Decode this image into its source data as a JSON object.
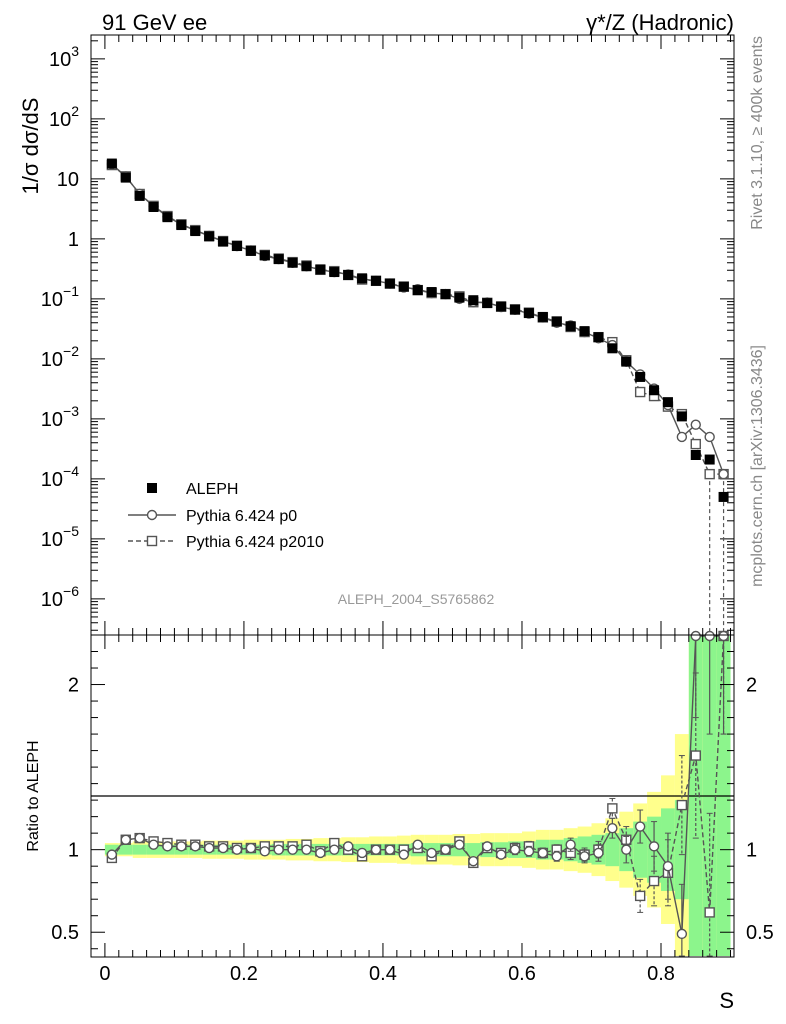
{
  "header": {
    "left": "91 GeV ee",
    "right": "γ*/Z (Hadronic)"
  },
  "side_labels": {
    "rivet": "Rivet 3.1.10, ≥ 400k events",
    "mcplots": "mcplots.cern.ch [arXiv:1306.3436]"
  },
  "analysis_id": "ALEPH_2004_S5765862",
  "colors": {
    "data": "#000000",
    "mc": "#555555",
    "band_inner": "#8cf58c",
    "band_outer": "#ffff8c"
  },
  "chart_data": [
    {
      "type": "scatter",
      "ylabel": "1/σ  dσ/dS",
      "yscale": "log",
      "ylim": [
        2.5e-07,
        2500
      ],
      "xlim": [
        -0.02,
        0.905
      ],
      "yticks": [
        {
          "value": 1e-06,
          "base": "10",
          "exp": "−6"
        },
        {
          "value": 1e-05,
          "base": "10",
          "exp": "−5"
        },
        {
          "value": 0.0001,
          "base": "10",
          "exp": "−4"
        },
        {
          "value": 0.001,
          "base": "10",
          "exp": "−3"
        },
        {
          "value": 0.01,
          "base": "10",
          "exp": "−2"
        },
        {
          "value": 0.1,
          "base": "10",
          "exp": "−1"
        },
        {
          "value": 1,
          "base": "1",
          "exp": ""
        },
        {
          "value": 10,
          "base": "10",
          "exp": ""
        },
        {
          "value": 100,
          "base": "10",
          "exp": "2"
        },
        {
          "value": 1000,
          "base": "10",
          "exp": "3"
        }
      ],
      "legend": {
        "position": "bottom-left",
        "entries": [
          "ALEPH",
          "Pythia 6.424 p0",
          "Pythia 6.424 p2010"
        ]
      },
      "x": [
        0.01,
        0.03,
        0.05,
        0.07,
        0.09,
        0.11,
        0.13,
        0.15,
        0.17,
        0.19,
        0.21,
        0.23,
        0.25,
        0.27,
        0.29,
        0.31,
        0.33,
        0.35,
        0.37,
        0.39,
        0.41,
        0.43,
        0.45,
        0.47,
        0.49,
        0.51,
        0.53,
        0.55,
        0.57,
        0.59,
        0.61,
        0.63,
        0.65,
        0.67,
        0.69,
        0.71,
        0.73,
        0.75,
        0.77,
        0.79,
        0.81,
        0.83,
        0.85,
        0.87,
        0.89
      ],
      "series": [
        {
          "name": "ALEPH",
          "values": [
            18,
            10.5,
            5.2,
            3.4,
            2.3,
            1.7,
            1.35,
            1.1,
            0.9,
            0.76,
            0.63,
            0.53,
            0.46,
            0.4,
            0.35,
            0.31,
            0.28,
            0.25,
            0.22,
            0.2,
            0.18,
            0.16,
            0.14,
            0.13,
            0.12,
            0.105,
            0.095,
            0.085,
            0.075,
            0.066,
            0.058,
            0.05,
            0.042,
            0.035,
            0.029,
            0.023,
            0.015,
            0.009,
            0.005,
            0.003,
            0.0019,
            0.0011,
            0.00025,
            0.00021,
            5e-05
          ]
        },
        {
          "name": "Pythia 6.424 p0",
          "values": [
            17.5,
            11,
            5.6,
            3.5,
            2.35,
            1.73,
            1.38,
            1.12,
            0.91,
            0.76,
            0.64,
            0.52,
            0.46,
            0.4,
            0.35,
            0.305,
            0.28,
            0.255,
            0.215,
            0.2,
            0.18,
            0.155,
            0.145,
            0.125,
            0.12,
            0.1,
            0.088,
            0.087,
            0.073,
            0.066,
            0.057,
            0.049,
            0.04,
            0.036,
            0.028,
            0.022,
            0.017,
            0.009,
            0.0055,
            0.0032,
            0.0017,
            0.0005,
            0.0008,
            0.0005,
            0.00012
          ]
        },
        {
          "name": "Pythia 6.424 p2010",
          "values": [
            17,
            11,
            5.6,
            3.55,
            2.4,
            1.75,
            1.4,
            1.12,
            0.92,
            0.77,
            0.64,
            0.54,
            0.47,
            0.41,
            0.36,
            0.305,
            0.29,
            0.25,
            0.21,
            0.2,
            0.18,
            0.16,
            0.14,
            0.125,
            0.12,
            0.11,
            0.088,
            0.086,
            0.074,
            0.067,
            0.059,
            0.049,
            0.042,
            0.034,
            0.028,
            0.023,
            0.019,
            0.0095,
            0.0028,
            0.0024,
            0.0016,
            0.0012,
            0.00038,
            0.00012,
            0.00012
          ]
        }
      ]
    },
    {
      "type": "line",
      "ylabel": "Ratio to ALEPH",
      "xlabel": "S",
      "ylim": [
        0.35,
        2.3
      ],
      "xlim": [
        -0.02,
        0.905
      ],
      "xticks": [
        {
          "value": 0,
          "label": "0"
        },
        {
          "value": 0.2,
          "label": "0.2"
        },
        {
          "value": 0.4,
          "label": "0.4"
        },
        {
          "value": 0.6,
          "label": "0.6"
        },
        {
          "value": 0.8,
          "label": "0.8"
        }
      ],
      "yticks": [
        {
          "value": 0.5,
          "label": "0.5"
        },
        {
          "value": 1,
          "label": "1"
        },
        {
          "value": 2,
          "label": "2"
        }
      ],
      "x": [
        0.01,
        0.03,
        0.05,
        0.07,
        0.09,
        0.11,
        0.13,
        0.15,
        0.17,
        0.19,
        0.21,
        0.23,
        0.25,
        0.27,
        0.29,
        0.31,
        0.33,
        0.35,
        0.37,
        0.39,
        0.41,
        0.43,
        0.45,
        0.47,
        0.49,
        0.51,
        0.53,
        0.55,
        0.57,
        0.59,
        0.61,
        0.63,
        0.65,
        0.67,
        0.69,
        0.71,
        0.73,
        0.75,
        0.77,
        0.79,
        0.81,
        0.83,
        0.85,
        0.87,
        0.89
      ],
      "band_inner": [
        0.03,
        0.03,
        0.03,
        0.03,
        0.03,
        0.03,
        0.03,
        0.03,
        0.03,
        0.03,
        0.03,
        0.03,
        0.035,
        0.035,
        0.035,
        0.035,
        0.035,
        0.035,
        0.035,
        0.035,
        0.035,
        0.035,
        0.04,
        0.04,
        0.04,
        0.04,
        0.04,
        0.045,
        0.045,
        0.05,
        0.05,
        0.06,
        0.06,
        0.07,
        0.08,
        0.09,
        0.1,
        0.13,
        0.17,
        0.2,
        0.25,
        0.3,
        2.5,
        2.5,
        2.5
      ],
      "band_outer": [
        0.04,
        0.04,
        0.05,
        0.05,
        0.05,
        0.05,
        0.05,
        0.055,
        0.055,
        0.055,
        0.06,
        0.06,
        0.06,
        0.065,
        0.065,
        0.07,
        0.07,
        0.075,
        0.075,
        0.08,
        0.08,
        0.085,
        0.09,
        0.09,
        0.09,
        0.095,
        0.095,
        0.1,
        0.1,
        0.1,
        0.11,
        0.12,
        0.12,
        0.13,
        0.14,
        0.16,
        0.19,
        0.23,
        0.28,
        0.35,
        0.45,
        0.7,
        2.5,
        2.5,
        2.5
      ],
      "series": [
        {
          "name": "Pythia 6.424 p0",
          "values": [
            0.97,
            1.06,
            1.07,
            1.03,
            1.02,
            1.02,
            1.02,
            1.01,
            1.01,
            1.0,
            1.01,
            0.99,
            1.0,
            1.0,
            1.0,
            0.98,
            1.0,
            1.02,
            0.98,
            1.0,
            1.0,
            0.97,
            1.03,
            0.98,
            1.0,
            1.03,
            0.93,
            1.02,
            0.97,
            1.0,
            0.99,
            0.98,
            0.96,
            1.03,
            0.96,
            0.98,
            1.13,
            1.0,
            1.14,
            1.02,
            0.9,
            0.49,
            2.3,
            2.3,
            2.3
          ],
          "err": [
            0.01,
            0.01,
            0.01,
            0.01,
            0.01,
            0.01,
            0.01,
            0.01,
            0.01,
            0.01,
            0.01,
            0.01,
            0.01,
            0.01,
            0.01,
            0.01,
            0.01,
            0.01,
            0.02,
            0.02,
            0.02,
            0.02,
            0.02,
            0.02,
            0.02,
            0.02,
            0.02,
            0.02,
            0.02,
            0.03,
            0.03,
            0.03,
            0.03,
            0.04,
            0.04,
            0.05,
            0.06,
            0.08,
            0.1,
            0.15,
            0.2,
            0.3,
            0.5,
            0.6,
            0.6
          ]
        },
        {
          "name": "Pythia 6.424 p2010",
          "values": [
            0.95,
            1.06,
            1.07,
            1.05,
            1.04,
            1.03,
            1.03,
            1.02,
            1.02,
            1.01,
            1.01,
            1.02,
            1.02,
            1.02,
            1.03,
            0.99,
            1.04,
            1.0,
            0.96,
            1.0,
            1.0,
            1.0,
            1.01,
            0.96,
            1.0,
            1.05,
            0.92,
            1.01,
            0.98,
            1.01,
            1.02,
            0.98,
            1.0,
            0.98,
            0.97,
            1.0,
            1.25,
            1.06,
            0.72,
            0.81,
            0.86,
            1.27,
            1.57,
            0.62,
            2.3
          ],
          "err": [
            0.01,
            0.01,
            0.01,
            0.01,
            0.01,
            0.01,
            0.01,
            0.01,
            0.01,
            0.01,
            0.01,
            0.01,
            0.01,
            0.01,
            0.01,
            0.01,
            0.01,
            0.01,
            0.02,
            0.02,
            0.02,
            0.02,
            0.02,
            0.02,
            0.02,
            0.02,
            0.02,
            0.02,
            0.02,
            0.03,
            0.03,
            0.03,
            0.03,
            0.04,
            0.04,
            0.05,
            0.06,
            0.08,
            0.1,
            0.15,
            0.2,
            0.3,
            0.5,
            0.6,
            0.6
          ]
        }
      ]
    }
  ]
}
